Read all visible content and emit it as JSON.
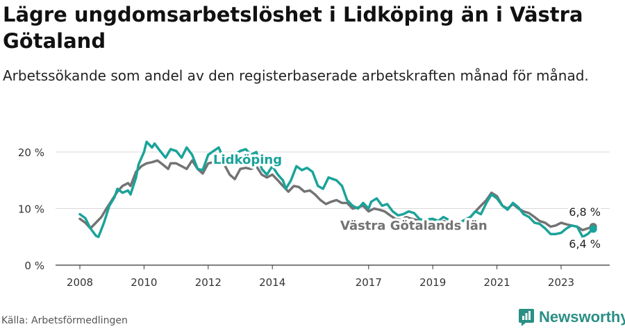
{
  "header": {
    "title": "Lägre ungdomsarbetslöshet i Lidköping än i Västra Götaland",
    "subtitle": "Arbetssökande som andel av den registerbaserade arbetskraften månad för månad."
  },
  "footer": {
    "source": "Källa: Arbetsförmedlingen",
    "brand": "Newsworthy"
  },
  "colors": {
    "lidkoping": "#1aa39a",
    "vastra": "#737373",
    "grid": "#d9d9d9",
    "axis": "#333333"
  },
  "chart_data": {
    "type": "line",
    "title": "Lägre ungdomsarbetslöshet i Lidköping än i Västra Götaland",
    "xlabel": "",
    "ylabel": "",
    "xlim": [
      2008.0,
      2024.2
    ],
    "ylim": [
      0,
      22
    ],
    "y_ticks": [
      0,
      10,
      20
    ],
    "y_tick_labels": [
      "0 %",
      "10 %",
      "20 %"
    ],
    "x_ticks": [
      2008,
      2010,
      2012,
      2014,
      2017,
      2019,
      2021,
      2023
    ],
    "series": [
      {
        "name": "Lidköping",
        "label": "Lidköping",
        "color": "#1aa39a",
        "points": [
          [
            2008.0,
            9.0
          ],
          [
            2008.17,
            8.3
          ],
          [
            2008.33,
            6.5
          ],
          [
            2008.5,
            5.2
          ],
          [
            2008.58,
            5.0
          ],
          [
            2008.75,
            7.5
          ],
          [
            2008.92,
            10.5
          ],
          [
            2009.08,
            12.0
          ],
          [
            2009.17,
            13.5
          ],
          [
            2009.33,
            12.8
          ],
          [
            2009.5,
            13.2
          ],
          [
            2009.58,
            12.5
          ],
          [
            2009.75,
            15.5
          ],
          [
            2009.83,
            17.8
          ],
          [
            2010.0,
            20.0
          ],
          [
            2010.08,
            21.8
          ],
          [
            2010.25,
            20.8
          ],
          [
            2010.33,
            21.5
          ],
          [
            2010.5,
            20.2
          ],
          [
            2010.67,
            19.0
          ],
          [
            2010.83,
            20.5
          ],
          [
            2011.0,
            20.2
          ],
          [
            2011.17,
            19.0
          ],
          [
            2011.33,
            20.8
          ],
          [
            2011.5,
            19.5
          ],
          [
            2011.67,
            17.0
          ],
          [
            2011.83,
            16.8
          ],
          [
            2012.0,
            19.5
          ],
          [
            2012.17,
            20.2
          ],
          [
            2012.33,
            20.8
          ],
          [
            2012.5,
            18.5
          ],
          [
            2012.67,
            17.8
          ],
          [
            2012.83,
            19.5
          ],
          [
            2013.0,
            20.2
          ],
          [
            2013.17,
            20.5
          ],
          [
            2013.33,
            19.5
          ],
          [
            2013.5,
            20.0
          ],
          [
            2013.67,
            17.0
          ],
          [
            2013.83,
            16.0
          ],
          [
            2014.0,
            17.5
          ],
          [
            2014.17,
            16.0
          ],
          [
            2014.33,
            15.0
          ],
          [
            2014.42,
            13.5
          ],
          [
            2014.58,
            15.0
          ],
          [
            2014.75,
            17.5
          ],
          [
            2014.92,
            16.8
          ],
          [
            2015.08,
            17.2
          ],
          [
            2015.25,
            16.5
          ],
          [
            2015.42,
            14.0
          ],
          [
            2015.58,
            13.5
          ],
          [
            2015.75,
            15.5
          ],
          [
            2016.0,
            15.0
          ],
          [
            2016.17,
            14.0
          ],
          [
            2016.33,
            11.5
          ],
          [
            2016.5,
            10.5
          ],
          [
            2016.67,
            10.0
          ],
          [
            2016.83,
            11.0
          ],
          [
            2017.0,
            10.0
          ],
          [
            2017.08,
            11.2
          ],
          [
            2017.25,
            11.8
          ],
          [
            2017.42,
            10.5
          ],
          [
            2017.58,
            10.8
          ],
          [
            2017.75,
            9.5
          ],
          [
            2017.92,
            8.8
          ],
          [
            2018.08,
            9.0
          ],
          [
            2018.25,
            9.5
          ],
          [
            2018.42,
            9.2
          ],
          [
            2018.58,
            8.2
          ],
          [
            2018.67,
            8.0
          ],
          [
            2019.0,
            8.2
          ],
          [
            2019.17,
            7.8
          ],
          [
            2019.33,
            8.5
          ],
          [
            2019.5,
            8.0
          ],
          [
            2019.67,
            7.2
          ],
          [
            2019.83,
            7.5
          ],
          [
            2020.0,
            8.0
          ],
          [
            2020.17,
            8.5
          ],
          [
            2020.33,
            9.5
          ],
          [
            2020.5,
            9.0
          ],
          [
            2020.67,
            11.0
          ],
          [
            2020.83,
            12.5
          ],
          [
            2021.0,
            11.8
          ],
          [
            2021.17,
            10.5
          ],
          [
            2021.33,
            9.8
          ],
          [
            2021.5,
            11.0
          ],
          [
            2021.67,
            10.2
          ],
          [
            2021.83,
            9.0
          ],
          [
            2022.0,
            8.5
          ],
          [
            2022.17,
            7.5
          ],
          [
            2022.33,
            7.3
          ],
          [
            2022.5,
            6.5
          ],
          [
            2022.67,
            5.5
          ],
          [
            2022.83,
            5.5
          ],
          [
            2023.0,
            5.7
          ],
          [
            2023.17,
            6.5
          ],
          [
            2023.33,
            7.0
          ],
          [
            2023.5,
            6.8
          ],
          [
            2023.67,
            5.0
          ],
          [
            2023.83,
            5.5
          ],
          [
            2024.0,
            6.4
          ]
        ]
      },
      {
        "name": "Västra Götalands län",
        "label": "Västra Götalands län",
        "color": "#737373",
        "points": [
          [
            2008.0,
            8.2
          ],
          [
            2008.17,
            7.5
          ],
          [
            2008.33,
            6.5
          ],
          [
            2008.5,
            7.5
          ],
          [
            2008.67,
            8.5
          ],
          [
            2008.83,
            10.0
          ],
          [
            2009.0,
            11.5
          ],
          [
            2009.17,
            13.0
          ],
          [
            2009.33,
            14.0
          ],
          [
            2009.5,
            14.5
          ],
          [
            2009.58,
            14.0
          ],
          [
            2009.75,
            16.5
          ],
          [
            2009.92,
            17.5
          ],
          [
            2010.08,
            18.0
          ],
          [
            2010.25,
            18.2
          ],
          [
            2010.42,
            18.5
          ],
          [
            2010.58,
            17.8
          ],
          [
            2010.75,
            17.0
          ],
          [
            2010.83,
            18.0
          ],
          [
            2011.0,
            18.0
          ],
          [
            2011.17,
            17.5
          ],
          [
            2011.33,
            17.0
          ],
          [
            2011.5,
            18.5
          ],
          [
            2011.67,
            17.0
          ],
          [
            2011.83,
            16.2
          ],
          [
            2012.0,
            18.0
          ],
          [
            2012.17,
            18.2
          ],
          [
            2012.33,
            18.0
          ],
          [
            2012.5,
            17.8
          ],
          [
            2012.67,
            16.0
          ],
          [
            2012.83,
            15.2
          ],
          [
            2013.0,
            17.0
          ],
          [
            2013.17,
            17.2
          ],
          [
            2013.33,
            17.0
          ],
          [
            2013.5,
            17.5
          ],
          [
            2013.67,
            16.0
          ],
          [
            2013.83,
            15.5
          ],
          [
            2014.0,
            16.0
          ],
          [
            2014.17,
            15.0
          ],
          [
            2014.33,
            14.0
          ],
          [
            2014.5,
            13.0
          ],
          [
            2014.67,
            14.0
          ],
          [
            2014.83,
            13.8
          ],
          [
            2015.0,
            13.0
          ],
          [
            2015.17,
            13.2
          ],
          [
            2015.33,
            12.5
          ],
          [
            2015.5,
            11.5
          ],
          [
            2015.67,
            10.8
          ],
          [
            2015.83,
            11.2
          ],
          [
            2016.0,
            11.5
          ],
          [
            2016.17,
            11.0
          ],
          [
            2016.33,
            11.0
          ],
          [
            2016.5,
            10.0
          ],
          [
            2016.67,
            10.2
          ],
          [
            2016.83,
            10.5
          ],
          [
            2017.0,
            9.5
          ],
          [
            2017.17,
            10.0
          ],
          [
            2017.33,
            9.8
          ],
          [
            2017.5,
            9.5
          ],
          [
            2017.67,
            8.8
          ],
          [
            2017.83,
            8.2
          ],
          [
            2018.0,
            8.0
          ],
          [
            2018.17,
            8.5
          ],
          [
            2018.33,
            8.2
          ],
          [
            2018.5,
            8.0
          ],
          [
            2018.67,
            7.5
          ],
          [
            2019.0,
            7.8
          ],
          [
            2019.17,
            7.5
          ],
          [
            2019.33,
            7.8
          ],
          [
            2019.5,
            7.5
          ],
          [
            2019.67,
            7.0
          ],
          [
            2019.83,
            7.5
          ],
          [
            2020.0,
            8.0
          ],
          [
            2020.17,
            8.5
          ],
          [
            2020.33,
            9.5
          ],
          [
            2020.5,
            10.5
          ],
          [
            2020.67,
            11.5
          ],
          [
            2020.83,
            12.8
          ],
          [
            2021.0,
            12.2
          ],
          [
            2021.17,
            10.5
          ],
          [
            2021.33,
            10.0
          ],
          [
            2021.5,
            10.8
          ],
          [
            2021.67,
            10.0
          ],
          [
            2021.83,
            9.5
          ],
          [
            2022.0,
            9.2
          ],
          [
            2022.17,
            8.5
          ],
          [
            2022.33,
            7.8
          ],
          [
            2022.5,
            7.5
          ],
          [
            2022.67,
            6.8
          ],
          [
            2022.83,
            7.0
          ],
          [
            2023.0,
            7.5
          ],
          [
            2023.17,
            7.2
          ],
          [
            2023.33,
            7.0
          ],
          [
            2023.5,
            6.8
          ],
          [
            2023.67,
            6.2
          ],
          [
            2023.83,
            6.5
          ],
          [
            2024.0,
            6.8
          ]
        ]
      }
    ],
    "annotations": {
      "lidkoping_last": "6,4 %",
      "vastra_last": "6,8 %"
    }
  }
}
